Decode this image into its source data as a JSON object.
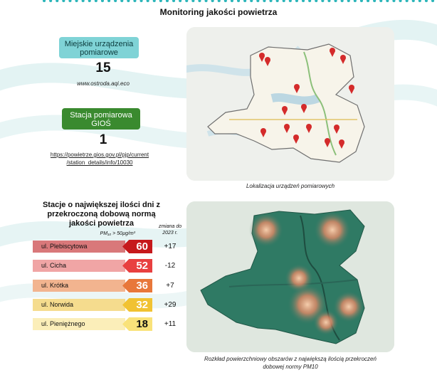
{
  "header": {
    "title": "Monitoring jakości powietrza"
  },
  "stats": [
    {
      "label": "Miejskie urządzenia pomiarowe",
      "value": "15",
      "source": "www.ostroda.aqi.eco",
      "color": "#7fd3d6"
    },
    {
      "label": "Stacja pomiarowa GIOŚ",
      "value": "1",
      "source_line1": "https://powietrze.gios.gov.pl/pjp/current",
      "source_line2": "/station_details/info/10030",
      "color": "#3a8a2f"
    }
  ],
  "map_locations": {
    "caption": "Lokalizacja urządzeń pomiarowych",
    "marker_count": 15
  },
  "map_heat": {
    "caption_line1": "Rozkład powierzchniowy obszarów z największą ilością przekroczeń",
    "caption_line2": "dobowej normy PM10"
  },
  "ranking": {
    "title_line1": "Stacje o największej ilości dni z",
    "title_line2": "przekroczoną dobową normą",
    "title_line3": "jakości powietrza",
    "pm_label": "PM₁₀ > 50µg/m³",
    "change_label_line1": "zmiana do",
    "change_label_line2": "2023 r.",
    "rows": [
      {
        "label": "ul. Plebiscytowa",
        "value": "60",
        "change": "+17",
        "bar_color": "#d9787a",
        "box_color": "#c6191c",
        "value_color": "#ffffff"
      },
      {
        "label": "ul. Cicha",
        "value": "52",
        "change": "-12",
        "bar_color": "#f0a5a5",
        "box_color": "#e84040",
        "value_color": "#ffffff"
      },
      {
        "label": "ul. Krótka",
        "value": "36",
        "change": "+7",
        "bar_color": "#f2b48f",
        "box_color": "#e8773a",
        "value_color": "#ffffff"
      },
      {
        "label": "ul. Norwida",
        "value": "32",
        "change": "+29",
        "bar_color": "#f5dc8e",
        "box_color": "#f1c232",
        "value_color": "#ffffff"
      },
      {
        "label": "ul. Pieniężnego",
        "value": "18",
        "change": "+11",
        "bar_color": "#fbeeb9",
        "box_color": "#f9e27a",
        "value_color": "#111111"
      }
    ]
  }
}
